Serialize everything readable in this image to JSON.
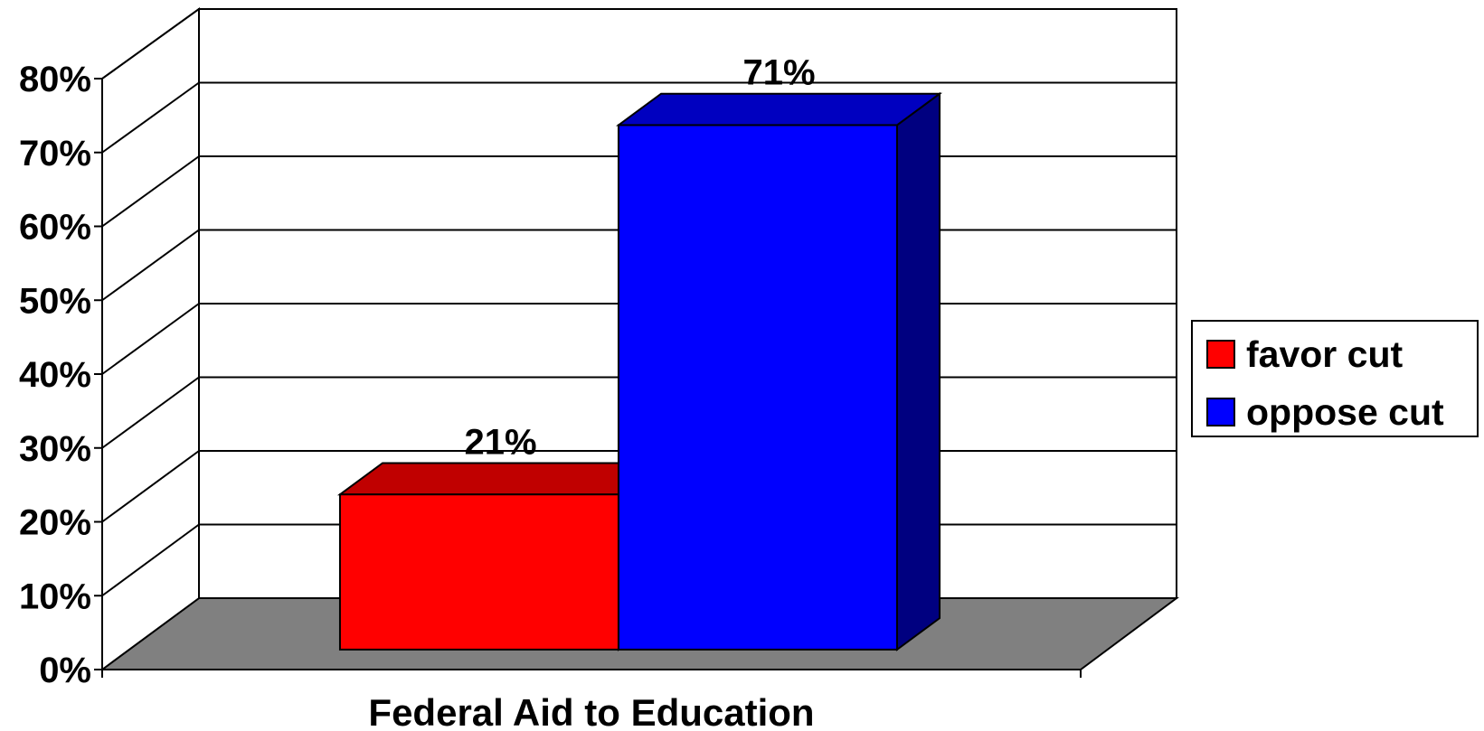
{
  "chart_data": {
    "type": "bar",
    "style": "3d-clustered-column",
    "categories": [
      "Federal Aid to Education"
    ],
    "series": [
      {
        "name": "favor cut",
        "values": [
          21
        ],
        "color": "#ff0000",
        "top_color": "#c00000",
        "side_color": "#a00000",
        "data_label": "21%"
      },
      {
        "name": "oppose cut",
        "values": [
          71
        ],
        "color": "#0000ff",
        "top_color": "#0000c0",
        "side_color": "#000080",
        "data_label": "71%"
      }
    ],
    "ylim": [
      0,
      80
    ],
    "yticks": [
      0,
      10,
      20,
      30,
      40,
      50,
      60,
      70,
      80
    ],
    "ytick_labels": [
      "0%",
      "10%",
      "20%",
      "30%",
      "40%",
      "50%",
      "60%",
      "70%",
      "80%"
    ],
    "grid": true,
    "legend_position": "right",
    "floor_color": "#808080",
    "title": "",
    "xlabel": "",
    "ylabel": ""
  },
  "legend": {
    "items": [
      "favor cut",
      "oppose cut"
    ]
  }
}
